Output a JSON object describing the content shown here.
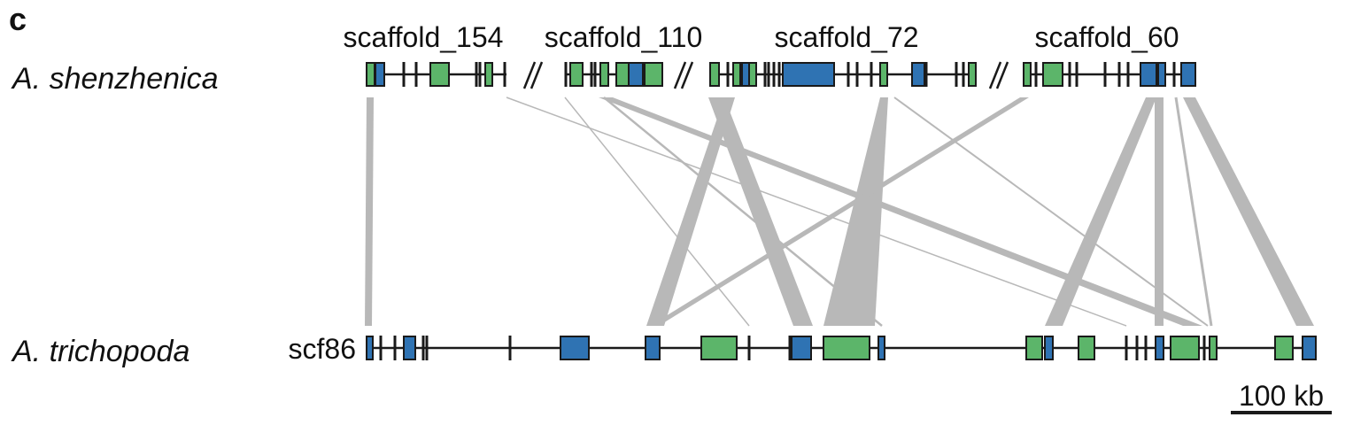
{
  "panel_label": "c",
  "species": {
    "top": "A. shenzhenica",
    "bottom": "A. trichopoda"
  },
  "top_scaffolds": [
    {
      "label": "scaffold_154"
    },
    {
      "label": "scaffold_110"
    },
    {
      "label": "scaffold_72"
    },
    {
      "label": "scaffold_60"
    }
  ],
  "bottom_scaffold": {
    "label": "scf86"
  },
  "scale_bar": {
    "label": "100 kb"
  },
  "colors": {
    "green": "#5cb56a",
    "blue": "#2f73b3",
    "line": "#1a1a1a",
    "link": "#b8b8b8"
  }
}
